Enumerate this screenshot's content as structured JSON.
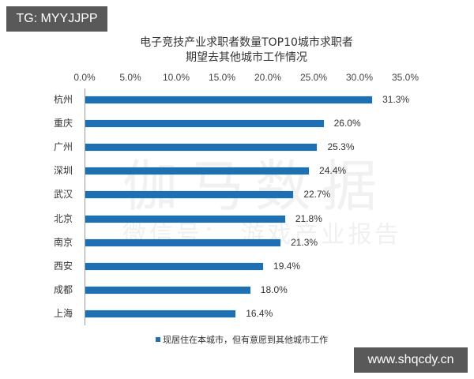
{
  "overlay": {
    "top_tag": "TG: MYYJJPP",
    "bottom_tag": "www.shqcdy.cn"
  },
  "watermark": {
    "main": "伽马数据",
    "sub": "微信号： 游戏产业报告"
  },
  "chart_data": {
    "type": "bar",
    "orientation": "horizontal",
    "title": "电子竞技产业求职者数量TOP10城市求职者期望去其他城市工作情况",
    "title_lines": [
      "电子竞技产业求职者数量TOP10城市求职者",
      "期望去其他城市工作情况"
    ],
    "xlabel": "",
    "ylabel": "",
    "xlim": [
      0,
      35
    ],
    "x_ticks": [
      "0.0%",
      "5.0%",
      "10.0%",
      "15.0%",
      "20.0%",
      "25.0%",
      "30.0%",
      "35.0%"
    ],
    "x_tick_values": [
      0,
      5,
      10,
      15,
      20,
      25,
      30,
      35
    ],
    "x_axis_position": "top",
    "grid": false,
    "categories": [
      "杭州",
      "重庆",
      "广州",
      "深圳",
      "武汉",
      "北京",
      "南京",
      "西安",
      "成都",
      "上海"
    ],
    "values": [
      31.3,
      26.0,
      25.3,
      24.4,
      22.7,
      21.8,
      21.3,
      19.4,
      18.0,
      16.4
    ],
    "value_labels": [
      "31.3%",
      "26.0%",
      "25.3%",
      "24.4%",
      "22.7%",
      "21.8%",
      "21.3%",
      "19.4%",
      "18.0%",
      "16.4%"
    ],
    "series": [
      {
        "name": "现居住在本城市，但有意愿到其他城市工作",
        "color": "#1f6fb3",
        "values": [
          31.3,
          26.0,
          25.3,
          24.4,
          22.7,
          21.8,
          21.3,
          19.4,
          18.0,
          16.4
        ]
      }
    ],
    "legend": {
      "position": "bottom",
      "entries": [
        "现居住在本城市，但有意愿到其他城市工作"
      ]
    },
    "bar_color": "#1f6fb3"
  }
}
